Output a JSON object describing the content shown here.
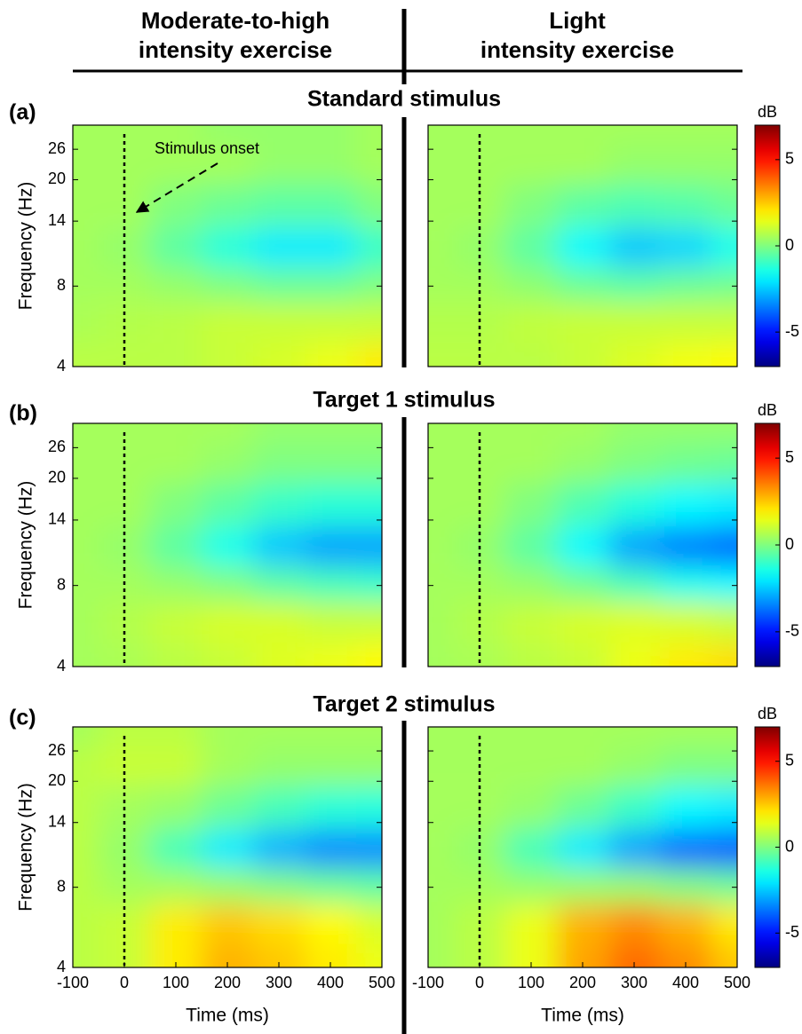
{
  "column_titles": [
    [
      "Moderate-to-high",
      "intensity exercise"
    ],
    [
      "Light",
      "intensity exercise"
    ]
  ],
  "chart_data": [
    {
      "type": "heatmap",
      "panel_label": "(a)",
      "title": "Standard stimulus",
      "ylabel": "Frequency (Hz)",
      "xlim": [
        -100,
        500
      ],
      "ylim": [
        4,
        32
      ],
      "yscale": "log",
      "yticks": [
        4,
        8,
        14,
        20,
        26
      ],
      "onset": 0,
      "annotation": "Stimulus onset",
      "colorbar": {
        "label": "dB",
        "clim": [
          -7,
          7
        ],
        "ticks": [
          5,
          0,
          -5
        ],
        "colormap": "jet"
      },
      "x": [
        -100,
        0,
        100,
        200,
        300,
        400,
        500
      ],
      "y": [
        4,
        6,
        8,
        11,
        16,
        23,
        32
      ],
      "panels": [
        {
          "z": [
            [
              0.8,
              0.8,
              0.8,
              1.0,
              1.2,
              1.5,
              2.0
            ],
            [
              0.6,
              0.7,
              0.8,
              1.0,
              1.0,
              1.0,
              1.0
            ],
            [
              0.5,
              0.5,
              0.3,
              0,
              -0.3,
              -0.3,
              0
            ],
            [
              0.5,
              0.3,
              -0.5,
              -1.3,
              -2.0,
              -2.0,
              -1.0
            ],
            [
              0.5,
              0.5,
              0,
              -0.3,
              -0.5,
              -0.5,
              0
            ],
            [
              0.5,
              0.5,
              0.5,
              0.5,
              0.3,
              0.3,
              0.5
            ],
            [
              0.5,
              0.5,
              0.5,
              0.3,
              0.3,
              0.3,
              0.5
            ]
          ]
        },
        {
          "z": [
            [
              0.8,
              0.8,
              0.8,
              1.0,
              1.3,
              1.6,
              1.8
            ],
            [
              0.7,
              0.7,
              0.9,
              1.0,
              1.0,
              1.0,
              1.0
            ],
            [
              0.5,
              0.5,
              0.2,
              -0.3,
              -0.5,
              -0.3,
              -0.2
            ],
            [
              0.5,
              0.3,
              -0.5,
              -1.8,
              -2.5,
              -2.3,
              -1.5
            ],
            [
              0.5,
              0.5,
              0,
              -0.5,
              -0.7,
              -0.6,
              -0.3
            ],
            [
              0.5,
              0.5,
              0.5,
              0.5,
              0.3,
              0.3,
              0.3
            ],
            [
              0.5,
              0.5,
              0.5,
              0.5,
              0.5,
              0.5,
              0.5
            ]
          ]
        }
      ]
    },
    {
      "type": "heatmap",
      "panel_label": "(b)",
      "title": "Target 1 stimulus",
      "ylabel": "Frequency (Hz)",
      "xlim": [
        -100,
        500
      ],
      "ylim": [
        4,
        32
      ],
      "yscale": "log",
      "yticks": [
        4,
        8,
        14,
        20,
        26
      ],
      "onset": 0,
      "colorbar": {
        "label": "dB",
        "clim": [
          -7,
          7
        ],
        "ticks": [
          5,
          0,
          -5
        ],
        "colormap": "jet"
      },
      "x": [
        -100,
        0,
        100,
        200,
        300,
        400,
        500
      ],
      "y": [
        4,
        6,
        8,
        11,
        16,
        23,
        32
      ],
      "panels": [
        {
          "z": [
            [
              0.5,
              0.6,
              0.8,
              1.0,
              1.3,
              1.5,
              1.8
            ],
            [
              0.5,
              0.7,
              1.0,
              1.2,
              1.2,
              1.0,
              1.0
            ],
            [
              0.5,
              0.5,
              0.3,
              0,
              -0.5,
              -0.8,
              -1.0
            ],
            [
              0.5,
              0.3,
              -0.5,
              -1.5,
              -2.5,
              -3.0,
              -3.0
            ],
            [
              0.5,
              0.5,
              0,
              -0.5,
              -1.0,
              -1.2,
              -1.2
            ],
            [
              0.5,
              0.5,
              0.5,
              0.3,
              0,
              0,
              0
            ],
            [
              0.5,
              0.5,
              0.5,
              0.5,
              0.3,
              0.3,
              0.3
            ]
          ]
        },
        {
          "z": [
            [
              0.5,
              0.6,
              0.8,
              1.0,
              1.5,
              2.0,
              2.2
            ],
            [
              0.5,
              0.7,
              1.0,
              1.2,
              1.3,
              1.2,
              1.0
            ],
            [
              0.5,
              0.5,
              0.3,
              -0.2,
              -0.8,
              -1.5,
              -1.8
            ],
            [
              0.5,
              0.3,
              -0.5,
              -1.8,
              -3.0,
              -3.5,
              -3.8
            ],
            [
              0.5,
              0.5,
              0,
              -0.7,
              -1.3,
              -1.8,
              -2.0
            ],
            [
              0.5,
              0.5,
              0.5,
              0.3,
              0,
              -0.2,
              -0.3
            ],
            [
              0.5,
              0.5,
              0.5,
              0.5,
              0.3,
              0.3,
              0.3
            ]
          ]
        }
      ]
    },
    {
      "type": "heatmap",
      "panel_label": "(c)",
      "title": "Target 2 stimulus",
      "ylabel": "Frequency (Hz)",
      "xlabel": "Time (ms)",
      "xlim": [
        -100,
        500
      ],
      "xticks": [
        -100,
        0,
        100,
        200,
        300,
        400,
        500
      ],
      "ylim": [
        4,
        32
      ],
      "yscale": "log",
      "yticks": [
        4,
        8,
        14,
        20,
        26
      ],
      "onset": 0,
      "colorbar": {
        "label": "dB",
        "clim": [
          -7,
          7
        ],
        "ticks": [
          5,
          0,
          -5
        ],
        "colormap": "jet"
      },
      "x": [
        -100,
        0,
        100,
        200,
        300,
        400,
        500
      ],
      "y": [
        4,
        6,
        8,
        11,
        16,
        23,
        32
      ],
      "panels": [
        {
          "z": [
            [
              0.8,
              1.0,
              2.0,
              2.8,
              2.5,
              2.0,
              1.5
            ],
            [
              0.8,
              1.0,
              2.0,
              2.5,
              2.2,
              1.8,
              1.2
            ],
            [
              0.8,
              0.5,
              0.5,
              0.3,
              0,
              -0.3,
              -0.5
            ],
            [
              0.8,
              0.3,
              -0.8,
              -2.0,
              -2.8,
              -3.3,
              -3.3
            ],
            [
              0.8,
              0.5,
              0.3,
              -0.3,
              -0.8,
              -1.2,
              -1.3
            ],
            [
              0.8,
              1.0,
              1.0,
              0.5,
              0.3,
              0.3,
              0.3
            ],
            [
              0.5,
              0.8,
              0.8,
              0.5,
              0.5,
              0.5,
              0.5
            ]
          ]
        },
        {
          "z": [
            [
              0.5,
              0.8,
              1.5,
              3.0,
              3.8,
              3.3,
              2.5
            ],
            [
              0.5,
              0.8,
              1.5,
              2.8,
              3.3,
              2.8,
              2.0
            ],
            [
              0.5,
              0.5,
              0.3,
              0.3,
              0.3,
              0,
              -0.3
            ],
            [
              0.5,
              0.3,
              -0.8,
              -2.0,
              -3.0,
              -3.8,
              -4.0
            ],
            [
              0.5,
              0.5,
              0.3,
              -0.3,
              -1.0,
              -1.8,
              -2.0
            ],
            [
              0.5,
              0.5,
              0.5,
              0.5,
              0.3,
              0,
              0
            ],
            [
              0.5,
              0.5,
              0.5,
              0.5,
              0.5,
              0.5,
              0.5
            ]
          ]
        }
      ]
    }
  ]
}
